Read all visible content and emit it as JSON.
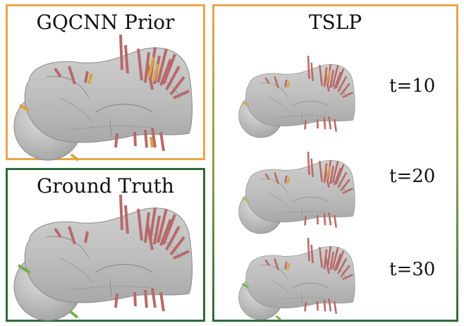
{
  "colors": {
    "prior_border": "#e8a74a",
    "truth_border": "#2f6b3a",
    "mesh": "#b9b9b9",
    "grasp_bad": "#b86a6a",
    "grasp_prior": "#d9a53a",
    "grasp_good": "#6fae4e"
  },
  "panels": {
    "gqcnn_prior": {
      "title": "GQCNN Prior"
    },
    "ground_truth": {
      "title": "Ground Truth"
    },
    "tslp": {
      "title": "TSLP",
      "timesteps": [
        {
          "label": "t=10"
        },
        {
          "label": "t=20"
        },
        {
          "label": "t=30"
        }
      ]
    }
  }
}
